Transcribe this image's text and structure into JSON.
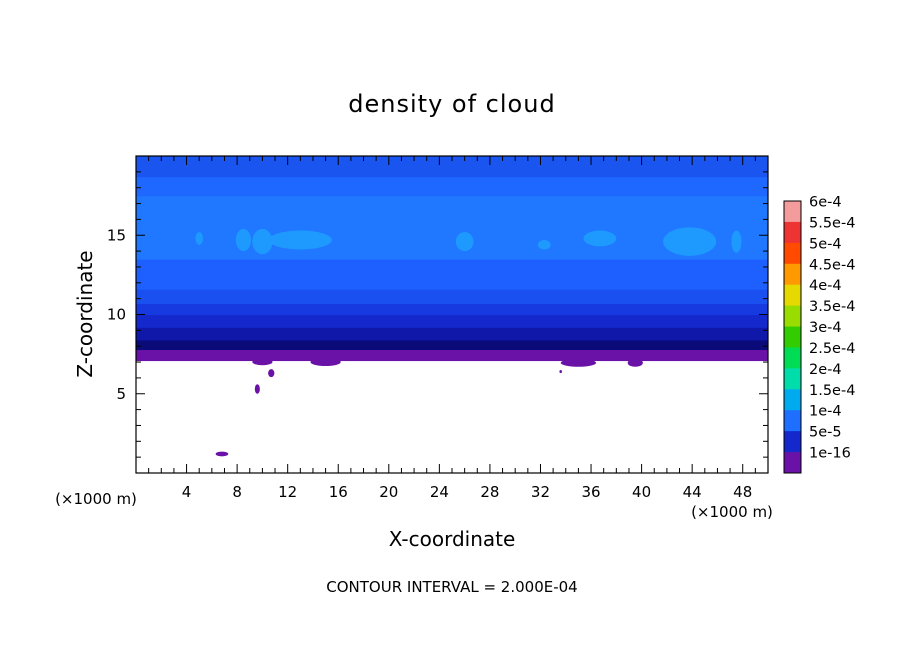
{
  "chart_data": {
    "type": "heatmap",
    "title": "density of cloud",
    "xlabel": "X-coordinate",
    "ylabel": "Z-coordinate",
    "x_unit": "(×1000 m)",
    "y_unit": "(×1000 m)",
    "xlim": [
      0,
      50
    ],
    "ylim": [
      0,
      20
    ],
    "x_ticks": [
      4,
      8,
      12,
      16,
      20,
      24,
      28,
      32,
      36,
      40,
      44,
      48
    ],
    "y_ticks": [
      5,
      10,
      15
    ],
    "footer": "CONTOUR INTERVAL = 2.000E-04",
    "colorbar": {
      "labels": [
        "6e-4",
        "5.5e-4",
        "5e-4",
        "4.5e-4",
        "4e-4",
        "3.5e-4",
        "3e-4",
        "2.5e-4",
        "2e-4",
        "1.5e-4",
        "1e-4",
        "5e-5",
        "1e-16"
      ],
      "colors": [
        "#f49b9b",
        "#ee3333",
        "#ff4a00",
        "#ff9900",
        "#e6d900",
        "#99dd00",
        "#33cc00",
        "#00dd55",
        "#00ddaa",
        "#00aaee",
        "#1e6eff",
        "#1428cc",
        "#6a12a8"
      ]
    },
    "bands": [
      {
        "z_bottom": 7.1,
        "z_top": 7.8,
        "color": "#6a12a8"
      },
      {
        "z_bottom": 7.8,
        "z_top": 8.4,
        "color": "#0a0a78"
      },
      {
        "z_bottom": 8.4,
        "z_top": 9.2,
        "color": "#0f18a8"
      },
      {
        "z_bottom": 9.2,
        "z_top": 10.0,
        "color": "#1428cc"
      },
      {
        "z_bottom": 10.0,
        "z_top": 10.7,
        "color": "#173ae0"
      },
      {
        "z_bottom": 10.7,
        "z_top": 11.6,
        "color": "#1a50f0"
      },
      {
        "z_bottom": 11.6,
        "z_top": 13.5,
        "color": "#1e60ff"
      },
      {
        "z_bottom": 13.5,
        "z_top": 17.5,
        "color": "#1f78ff"
      },
      {
        "z_bottom": 17.5,
        "z_top": 18.7,
        "color": "#1e68ff"
      },
      {
        "z_bottom": 18.7,
        "z_top": 20.0,
        "color": "#1a55f0"
      }
    ],
    "patches": [
      {
        "x": 5.0,
        "z": 14.8,
        "rx": 0.3,
        "rz": 0.4,
        "color": "#1e9aff"
      },
      {
        "x": 8.5,
        "z": 14.7,
        "rx": 0.6,
        "rz": 0.7,
        "color": "#1e9aff"
      },
      {
        "x": 10.0,
        "z": 14.6,
        "rx": 0.8,
        "rz": 0.8,
        "color": "#1e9aff"
      },
      {
        "x": 13.0,
        "z": 14.7,
        "rx": 2.5,
        "rz": 0.6,
        "color": "#1e9aff"
      },
      {
        "x": 26.0,
        "z": 14.6,
        "rx": 0.7,
        "rz": 0.6,
        "color": "#1e9aff"
      },
      {
        "x": 32.3,
        "z": 14.4,
        "rx": 0.5,
        "rz": 0.3,
        "color": "#1e9aff"
      },
      {
        "x": 36.7,
        "z": 14.8,
        "rx": 1.3,
        "rz": 0.5,
        "color": "#1e9aff"
      },
      {
        "x": 43.8,
        "z": 14.6,
        "rx": 2.1,
        "rz": 0.9,
        "color": "#1e9aff"
      },
      {
        "x": 47.5,
        "z": 14.6,
        "rx": 0.4,
        "rz": 0.7,
        "color": "#1e9aff"
      },
      {
        "x": 6.8,
        "z": 1.2,
        "rx": 0.5,
        "rz": 0.15,
        "color": "#6a12a8"
      },
      {
        "x": 9.6,
        "z": 5.3,
        "rx": 0.2,
        "rz": 0.3,
        "color": "#6a12a8"
      },
      {
        "x": 10.7,
        "z": 6.3,
        "rx": 0.25,
        "rz": 0.25,
        "color": "#6a12a8"
      },
      {
        "x": 33.6,
        "z": 6.4,
        "rx": 0.1,
        "rz": 0.1,
        "color": "#6a12a8"
      },
      {
        "x": 15.0,
        "z": 7.0,
        "rx": 1.2,
        "rz": 0.25,
        "color": "#6a12a8"
      },
      {
        "x": 35.0,
        "z": 6.95,
        "rx": 1.4,
        "rz": 0.25,
        "color": "#6a12a8"
      },
      {
        "x": 39.5,
        "z": 6.95,
        "rx": 0.6,
        "rz": 0.25,
        "color": "#6a12a8"
      },
      {
        "x": 10.0,
        "z": 7.0,
        "rx": 0.8,
        "rz": 0.2,
        "color": "#6a12a8"
      }
    ]
  }
}
